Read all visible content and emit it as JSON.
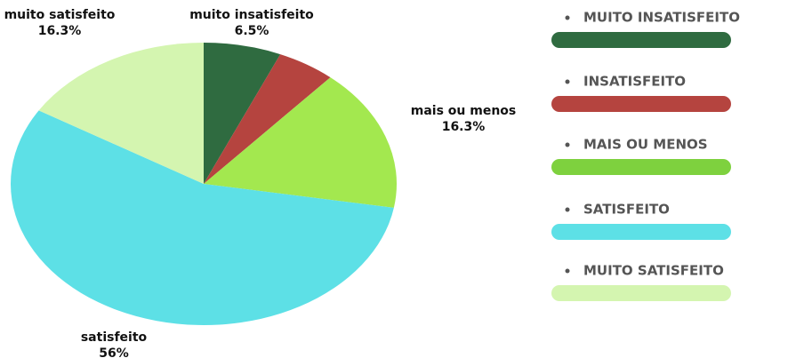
{
  "chart_data": {
    "type": "pie",
    "categories": [
      "muito insatisfeito",
      null,
      "mais ou menos",
      "satisfeito",
      "muito satisfeito"
    ],
    "values": [
      6.5,
      4.9,
      16.3,
      56,
      16.3
    ],
    "value_labels": [
      "6.5%",
      null,
      "16.3%",
      "56%",
      "16.3%"
    ],
    "colors": [
      "#2f6b40",
      "#b5443f",
      "#a3e84f",
      "#5de0e6",
      "#d4f5b0"
    ],
    "legend": [
      "MUITO INSATISFEITO",
      "INSATISFEITO",
      "MAIS OU MENOS",
      "SATISFEITO",
      "MUITO SATISFEITO"
    ],
    "legend_colors": [
      "#2f6b40",
      "#b5443f",
      "#7ed13e",
      "#5de0e6",
      "#d4f5b0"
    ]
  }
}
